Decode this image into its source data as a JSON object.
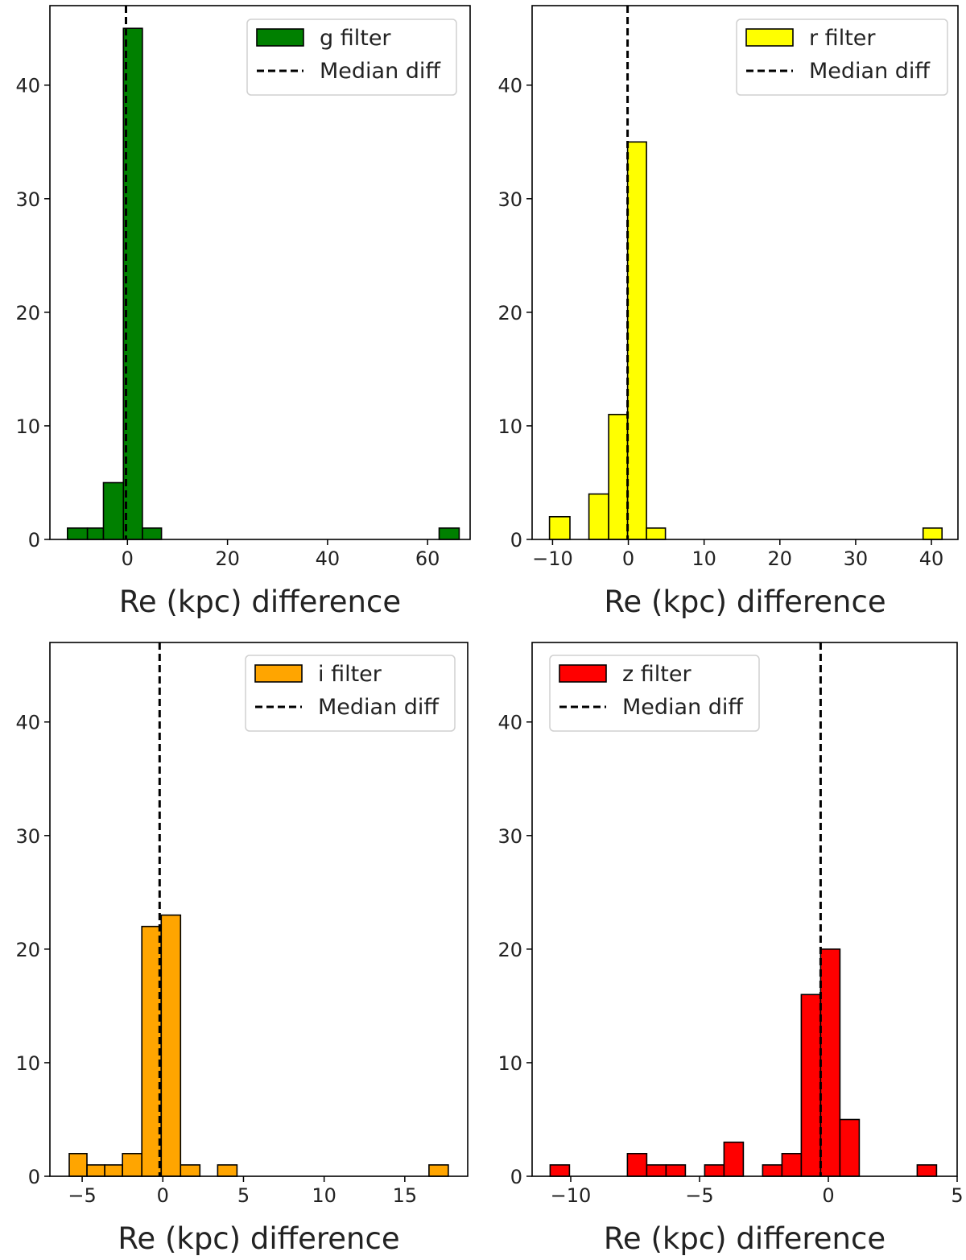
{
  "chart_data": [
    {
      "type": "histogram",
      "panel": "top-left",
      "xlabel": "Re (kpc) difference",
      "ylabel": "",
      "xlim": [
        -15.5,
        68.5
      ],
      "ylim": [
        0,
        47
      ],
      "xticks": [
        0,
        20,
        40,
        60
      ],
      "yticks": [
        0,
        10,
        20,
        30,
        40
      ],
      "xtick_labels": [
        "0",
        "20",
        "40",
        "60"
      ],
      "ytick_labels": [
        "0",
        "10",
        "20",
        "30",
        "40"
      ],
      "color": "#008000",
      "median_diff": -0.3,
      "bins": [
        {
          "x0": -12.0,
          "x1": -8.0,
          "count": 1
        },
        {
          "x0": -8.0,
          "x1": -4.8,
          "count": 1
        },
        {
          "x0": -4.8,
          "x1": -0.8,
          "count": 5
        },
        {
          "x0": -0.8,
          "x1": 3.0,
          "count": 45
        },
        {
          "x0": 3.0,
          "x1": 6.8,
          "count": 1
        },
        {
          "x0": 62.3,
          "x1": 66.3,
          "count": 1
        }
      ],
      "legend": {
        "position": "top-right",
        "entries": [
          "g filter",
          "Median diff"
        ]
      }
    },
    {
      "type": "histogram",
      "panel": "top-right",
      "xlabel": "Re (kpc) difference",
      "ylabel": "",
      "xlim": [
        -12.7,
        43.5
      ],
      "ylim": [
        0,
        47
      ],
      "xticks": [
        -10,
        0,
        10,
        20,
        30,
        40
      ],
      "yticks": [
        0,
        10,
        20,
        30,
        40
      ],
      "xtick_labels": [
        "−10",
        "0",
        "10",
        "20",
        "30",
        "40"
      ],
      "ytick_labels": [
        "0",
        "10",
        "20",
        "30",
        "40"
      ],
      "color": "#ffff00",
      "median_diff": -0.1,
      "bins": [
        {
          "x0": -10.4,
          "x1": -7.7,
          "count": 2
        },
        {
          "x0": -5.2,
          "x1": -2.6,
          "count": 4
        },
        {
          "x0": -2.6,
          "x1": -0.1,
          "count": 11
        },
        {
          "x0": -0.1,
          "x1": 2.4,
          "count": 35
        },
        {
          "x0": 2.4,
          "x1": 4.9,
          "count": 1
        },
        {
          "x0": 38.9,
          "x1": 41.4,
          "count": 1
        }
      ],
      "legend": {
        "position": "top-right",
        "entries": [
          "r filter",
          "Median diff"
        ]
      }
    },
    {
      "type": "histogram",
      "panel": "bottom-left",
      "xlabel": "Re (kpc) difference",
      "ylabel": "",
      "xlim": [
        -7.0,
        18.9
      ],
      "ylim": [
        0,
        47
      ],
      "xticks": [
        -5,
        0,
        5,
        10,
        15
      ],
      "yticks": [
        0,
        10,
        20,
        30,
        40
      ],
      "xtick_labels": [
        "−5",
        "0",
        "5",
        "10",
        "15"
      ],
      "ytick_labels": [
        "0",
        "10",
        "20",
        "30",
        "40"
      ],
      "color": "#ffa500",
      "median_diff": -0.2,
      "bins": [
        {
          "x0": -5.8,
          "x1": -4.7,
          "count": 2
        },
        {
          "x0": -4.7,
          "x1": -3.6,
          "count": 1
        },
        {
          "x0": -3.6,
          "x1": -2.5,
          "count": 1
        },
        {
          "x0": -2.5,
          "x1": -1.3,
          "count": 2
        },
        {
          "x0": -1.3,
          "x1": -0.1,
          "count": 22
        },
        {
          "x0": -0.1,
          "x1": 1.1,
          "count": 23
        },
        {
          "x0": 1.1,
          "x1": 2.3,
          "count": 1
        },
        {
          "x0": 3.4,
          "x1": 4.6,
          "count": 1
        },
        {
          "x0": 16.5,
          "x1": 17.7,
          "count": 1
        }
      ],
      "legend": {
        "position": "top-right",
        "entries": [
          "i filter",
          "Median diff"
        ]
      }
    },
    {
      "type": "histogram",
      "panel": "bottom-right",
      "xlabel": "Re (kpc) difference",
      "ylabel": "",
      "xlim": [
        -11.5,
        5.0
      ],
      "ylim": [
        0,
        47
      ],
      "xticks": [
        -10,
        -5,
        0,
        5
      ],
      "yticks": [
        0,
        10,
        20,
        30,
        40
      ],
      "xtick_labels": [
        "−10",
        "−5",
        "0",
        "5"
      ],
      "ytick_labels": [
        "0",
        "10",
        "20",
        "30",
        "40"
      ],
      "color": "#ff0000",
      "median_diff": -0.3,
      "bins": [
        {
          "x0": -10.8,
          "x1": -10.05,
          "count": 1
        },
        {
          "x0": -7.8,
          "x1": -7.05,
          "count": 2
        },
        {
          "x0": -7.05,
          "x1": -6.3,
          "count": 1
        },
        {
          "x0": -6.3,
          "x1": -5.55,
          "count": 1
        },
        {
          "x0": -4.8,
          "x1": -4.05,
          "count": 1
        },
        {
          "x0": -4.05,
          "x1": -3.3,
          "count": 3
        },
        {
          "x0": -2.55,
          "x1": -1.8,
          "count": 1
        },
        {
          "x0": -1.8,
          "x1": -1.05,
          "count": 2
        },
        {
          "x0": -1.05,
          "x1": -0.3,
          "count": 16
        },
        {
          "x0": -0.3,
          "x1": 0.45,
          "count": 20
        },
        {
          "x0": 0.45,
          "x1": 1.2,
          "count": 5
        },
        {
          "x0": 3.45,
          "x1": 4.2,
          "count": 1
        }
      ],
      "legend": {
        "position": "top-left",
        "entries": [
          "z filter",
          "Median diff"
        ]
      }
    }
  ]
}
